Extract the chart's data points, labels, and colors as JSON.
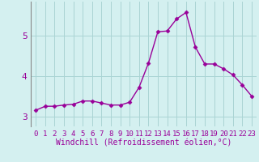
{
  "x": [
    0,
    1,
    2,
    3,
    4,
    5,
    6,
    7,
    8,
    9,
    10,
    11,
    12,
    13,
    14,
    15,
    16,
    17,
    18,
    19,
    20,
    21,
    22,
    23
  ],
  "y": [
    3.15,
    3.25,
    3.25,
    3.28,
    3.3,
    3.38,
    3.38,
    3.33,
    3.28,
    3.28,
    3.35,
    3.72,
    4.32,
    5.1,
    5.12,
    5.42,
    5.58,
    4.72,
    4.3,
    4.3,
    4.18,
    4.03,
    3.78,
    3.5
  ],
  "line_color": "#990099",
  "marker": "D",
  "marker_size": 2.5,
  "line_width": 1.0,
  "bg_color": "#d4f0f0",
  "grid_color": "#aad4d4",
  "xlabel": "Windchill (Refroidissement éolien,°C)",
  "xlim": [
    -0.5,
    23.5
  ],
  "ylim": [
    2.75,
    5.85
  ],
  "yticks": [
    3,
    4,
    5
  ],
  "xticks": [
    0,
    1,
    2,
    3,
    4,
    5,
    6,
    7,
    8,
    9,
    10,
    11,
    12,
    13,
    14,
    15,
    16,
    17,
    18,
    19,
    20,
    21,
    22,
    23
  ],
  "xlabel_color": "#990099",
  "tick_color": "#990099",
  "label_fontsize": 7,
  "tick_fontsize": 6.5,
  "ytick_fontsize": 8
}
